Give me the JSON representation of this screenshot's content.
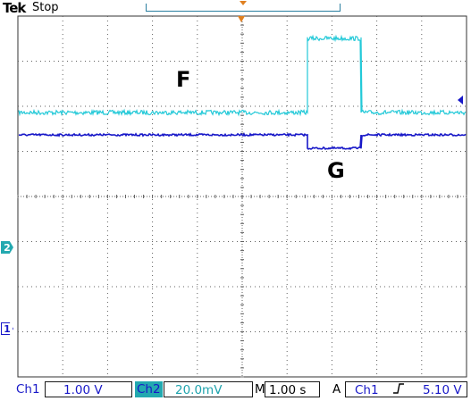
{
  "header": {
    "brand": "Tek",
    "acquisition_state": "Stop"
  },
  "colors": {
    "ch1": "#1818c8",
    "ch2": "#23c9d8",
    "grid": "#606060",
    "record_bracket": "#2a7fa0",
    "trigger_cursor": "#e08020"
  },
  "labels": {
    "upper_trace": "F",
    "lower_trace": "G"
  },
  "markers": {
    "ch2": "2",
    "ch1": "1"
  },
  "statusbar": {
    "ch1_name": "Ch1",
    "ch1_scale": "1.00 V",
    "ch2_name": "Ch2",
    "ch2_scale": "20.0mV",
    "timebase_name": "M",
    "timebase": "1.00 s",
    "trigger_mode": "A",
    "trigger_source": "Ch1",
    "trigger_slope": "rising-edge-icon",
    "trigger_level": "5.10 V"
  }
}
